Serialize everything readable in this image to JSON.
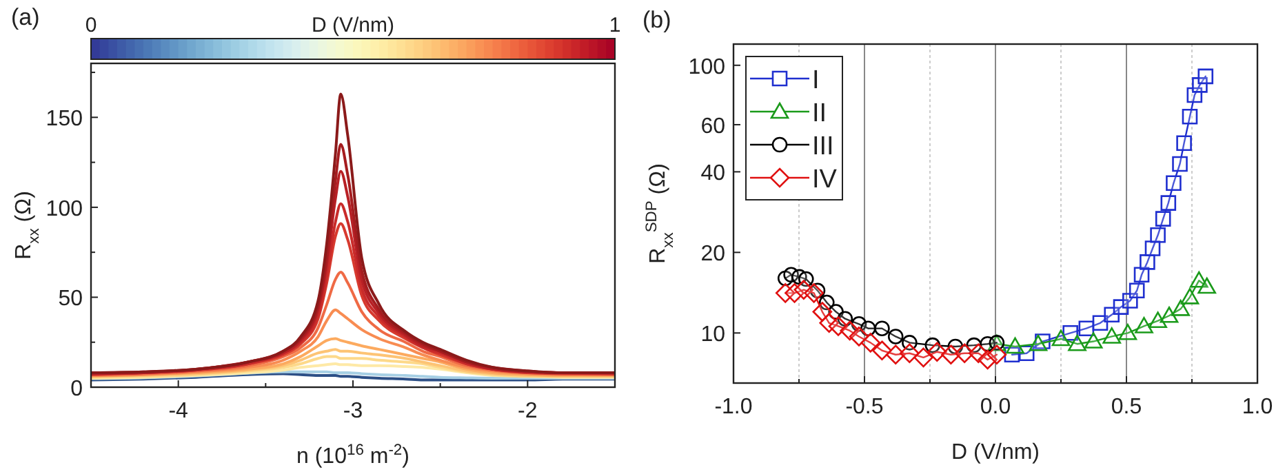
{
  "chart_data": [
    {
      "type": "line",
      "title": "(a)",
      "xlabel": "n (10$^{16}$ m$^{-2}$)",
      "ylabel": "R$_{xx}$ (Ω)",
      "clabel": "D (V/nm)",
      "clim": [
        0,
        1
      ],
      "cticks": [
        0,
        1
      ],
      "x": [
        -4.5,
        -4.2,
        -3.9,
        -3.6,
        -3.4,
        -3.3,
        -3.2,
        -3.15,
        -3.1,
        -3.07,
        -3.03,
        -2.95,
        -2.85,
        -2.7,
        -2.6,
        -2.5,
        -2.35,
        -2.2,
        -2.0,
        -1.8,
        -1.5
      ],
      "xlim": [
        -4.5,
        -1.5
      ],
      "xticks": [
        -4,
        {
          "value": -3.5,
          "label": null
        },
        -3,
        {
          "value": -2.5,
          "label": null
        },
        -2
      ],
      "ylim": [
        0,
        180
      ],
      "yticks": [
        0,
        {
          "value": 25,
          "label": null
        },
        50,
        {
          "value": 75,
          "label": null
        },
        100,
        {
          "value": 125,
          "label": null
        },
        150,
        {
          "value": 175,
          "label": null
        }
      ],
      "series": [
        {
          "color": "#2c4f86",
          "values": [
            4,
            4.5,
            5.5,
            7,
            7.5,
            7,
            6.5,
            6.5,
            6.5,
            6,
            6,
            5.5,
            5,
            4.5,
            4,
            4,
            4,
            4,
            4,
            4.5,
            4.5
          ]
        },
        {
          "color": "#a6cfe4",
          "values": [
            4.8,
            5.2,
            6.2,
            7.8,
            8.5,
            8.5,
            8.5,
            8.5,
            8,
            8,
            8,
            7.5,
            7,
            6.5,
            6,
            5.5,
            5.2,
            5,
            5,
            5,
            5
          ]
        },
        {
          "color": "#fee9a6",
          "values": [
            5,
            5.5,
            6.5,
            8,
            9.5,
            11,
            12,
            12.5,
            13,
            12.5,
            12.5,
            12,
            12,
            11.5,
            11,
            10,
            8,
            6.5,
            6,
            5.5,
            5.5
          ]
        },
        {
          "color": "#fdd98a",
          "values": [
            5.5,
            6,
            7,
            9,
            11,
            13,
            16,
            17,
            17,
            16,
            16,
            16,
            15,
            14,
            13,
            11,
            8.5,
            7,
            6,
            6,
            6
          ]
        },
        {
          "color": "#fdc475",
          "values": [
            6,
            6.5,
            7.5,
            9.5,
            12,
            15,
            19,
            20,
            21,
            20,
            20,
            19,
            18,
            16,
            14,
            12,
            9,
            7.5,
            6.5,
            6,
            6
          ]
        },
        {
          "color": "#fcaa5f",
          "values": [
            6,
            7,
            8,
            10,
            13,
            17,
            23,
            26,
            27,
            26,
            25,
            23,
            21,
            18,
            16,
            14,
            10,
            8,
            7,
            6.5,
            6.5
          ]
        },
        {
          "color": "#f88c52",
          "values": [
            6.5,
            7,
            8.5,
            11,
            15,
            20,
            28,
            37,
            43,
            41,
            38,
            32,
            27,
            22,
            18,
            15,
            11,
            9,
            7.5,
            7,
            7
          ]
        },
        {
          "color": "#ef6a45",
          "values": [
            7,
            7.5,
            9,
            12,
            17,
            22,
            33,
            46,
            60,
            64,
            58,
            42,
            32,
            25,
            20,
            17,
            12,
            9.5,
            8,
            7.5,
            7
          ]
        },
        {
          "color": "#d73a2f",
          "values": [
            7,
            8,
            9.5,
            13,
            18,
            24,
            38,
            58,
            84,
            91,
            82,
            51,
            37,
            27,
            22,
            18,
            13,
            10,
            8,
            7.5,
            7.5
          ]
        },
        {
          "color": "#c92b2a",
          "values": [
            7.5,
            8,
            9.5,
            13,
            19,
            25,
            40,
            62,
            92,
            102,
            92,
            55,
            39,
            28,
            22,
            19,
            13,
            10,
            8.5,
            8,
            7.5
          ]
        },
        {
          "color": "#b82025",
          "values": [
            7.5,
            8,
            10,
            14,
            19,
            26,
            43,
            68,
            105,
            120,
            106,
            60,
            41,
            29,
            23,
            20,
            14,
            10,
            8.5,
            8,
            8
          ]
        },
        {
          "color": "#a51c1f",
          "values": [
            8,
            8.5,
            10,
            14,
            20,
            27,
            45,
            72,
            115,
            135,
            118,
            65,
            43,
            30,
            24,
            20,
            14,
            11,
            9,
            8,
            8
          ]
        },
        {
          "color": "#8b1a1a",
          "values": [
            8,
            8.5,
            10,
            14,
            20,
            28,
            48,
            80,
            130,
            163,
            140,
            72,
            46,
            31,
            25,
            21,
            15,
            11,
            9,
            8,
            8
          ]
        }
      ]
    },
    {
      "type": "line",
      "title": "(b)",
      "xlabel": "D (V/nm)",
      "ylabel": "R$_{xx}$$^{SDP}$ (Ω)",
      "log": "y",
      "grid": "x",
      "legend": "top left",
      "xlim": [
        -1,
        1
      ],
      "xticks": [
        {
          "value": -1,
          "label": "-1.0"
        },
        {
          "value": -0.75,
          "label": null
        },
        -0.5,
        {
          "value": -0.25,
          "label": null
        },
        {
          "value": 0,
          "label": "0.0"
        },
        {
          "value": 0.25,
          "label": null
        },
        0.5,
        {
          "value": 0.75,
          "label": null
        },
        {
          "value": 1,
          "label": "1.0"
        }
      ],
      "ylim": [
        6.5,
        120
      ],
      "yticks": [
        10,
        20,
        40,
        60,
        100
      ],
      "series": [
        {
          "name": "I",
          "color": "#1f2fcf",
          "marker": "square",
          "x": [
            0.063,
            0.119,
            0.18,
            0.286,
            0.347,
            0.4,
            0.444,
            0.479,
            0.514,
            0.54,
            0.558,
            0.58,
            0.6,
            0.62,
            0.64,
            0.66,
            0.68,
            0.704,
            0.72,
            0.742,
            0.76,
            0.78,
            0.802
          ],
          "values": [
            8.3,
            8.4,
            9.3,
            10,
            10.4,
            10.9,
            11.7,
            12.5,
            13.2,
            14.4,
            16.5,
            18.4,
            20.7,
            23.2,
            26.7,
            30.6,
            36.3,
            42.8,
            51.2,
            64.3,
            77.4,
            84.4,
            90.9
          ]
        },
        {
          "name": "II",
          "color": "#1a9a1a",
          "marker": "triangle",
          "x": [
            0.005,
            0.075,
            0.163,
            0.25,
            0.312,
            0.374,
            0.444,
            0.505,
            0.567,
            0.62,
            0.663,
            0.707,
            0.742,
            0.777,
            0.807
          ],
          "values": [
            9.1,
            8.9,
            9.1,
            9.5,
            9.1,
            9.3,
            9.7,
            10,
            10.6,
            11.1,
            11.6,
            12.3,
            13.6,
            15.7,
            14.9
          ]
        },
        {
          "name": "III",
          "color": "#000000",
          "marker": "circle",
          "x": [
            -0.802,
            -0.78,
            -0.749,
            -0.723,
            -0.679,
            -0.644,
            -0.609,
            -0.574,
            -0.521,
            -0.486,
            -0.433,
            -0.381,
            -0.328,
            -0.24,
            -0.153,
            -0.082,
            -0.03,
            0.005
          ],
          "values": [
            16,
            16.5,
            16.2,
            15.9,
            14.4,
            13,
            12,
            11.3,
            10.8,
            10.4,
            10.4,
            9.7,
            9.2,
            9,
            8.9,
            9,
            9.1,
            9.2
          ]
        },
        {
          "name": "IV",
          "color": "#e01010",
          "marker": "diamond",
          "x": [
            -0.802,
            -0.767,
            -0.732,
            -0.693,
            -0.661,
            -0.635,
            -0.6,
            -0.556,
            -0.521,
            -0.477,
            -0.433,
            -0.381,
            -0.328,
            -0.275,
            -0.223,
            -0.17,
            -0.118,
            -0.065,
            -0.03,
            0.005
          ],
          "values": [
            14.1,
            14.1,
            14.5,
            14.1,
            12,
            10.9,
            10.6,
            10.2,
            9.7,
            9.2,
            8.6,
            8.3,
            8.4,
            8.1,
            8.5,
            8.3,
            8.4,
            8.4,
            7.95,
            8.3
          ]
        }
      ]
    }
  ]
}
